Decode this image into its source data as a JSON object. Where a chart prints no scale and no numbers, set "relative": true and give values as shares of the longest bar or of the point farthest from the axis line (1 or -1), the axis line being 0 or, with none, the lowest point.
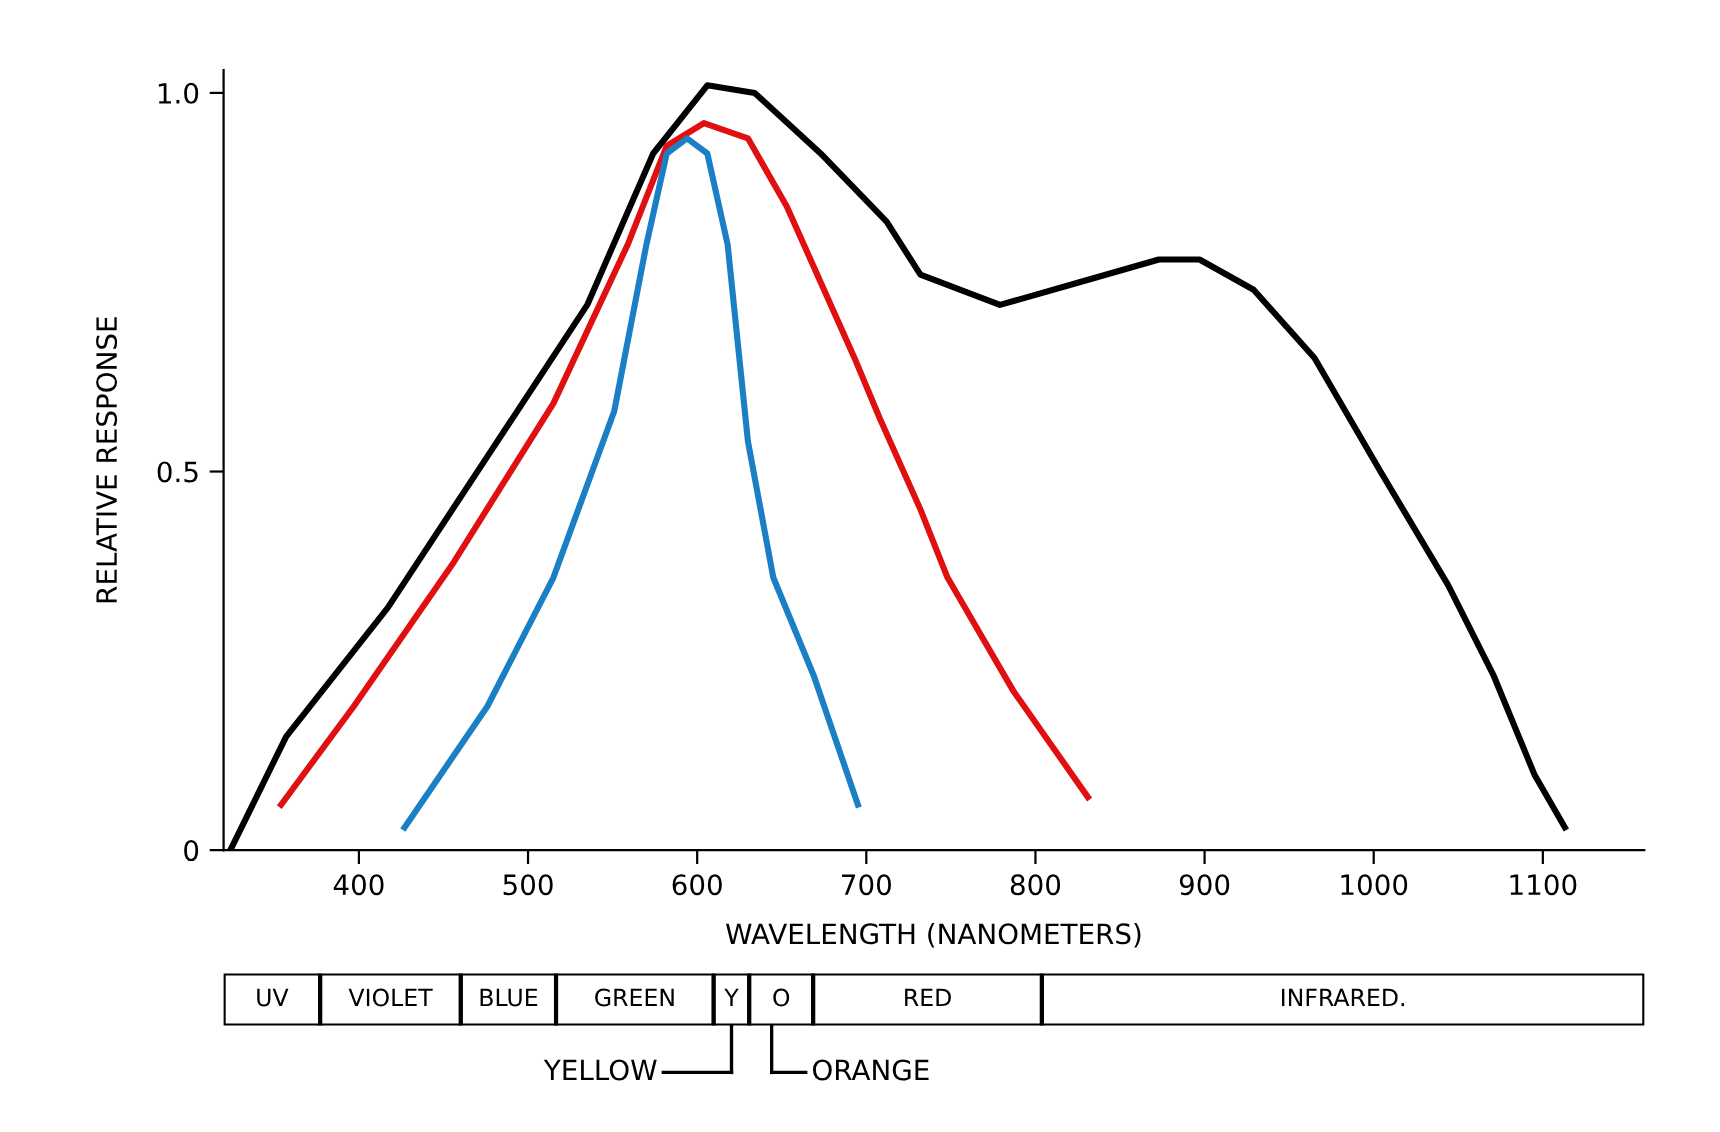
{
  "chart_data": [
    {
      "type": "line",
      "xlabel": "WAVELENGTH (NANOMETERS)",
      "ylabel": "RELATIVE RESPONSE",
      "xlim": [
        320,
        1160
      ],
      "ylim": [
        0,
        1.03
      ],
      "xticks": [
        400,
        500,
        600,
        700,
        800,
        900,
        1000,
        1100
      ],
      "yticks": [
        0,
        0.5,
        {
          "value": 1,
          "label": "1.0"
        }
      ],
      "grid": false,
      "legend": false,
      "marker": "none",
      "line_style": "solid",
      "series": [
        {
          "color": "#000000",
          "x": [
            324,
            357,
            417,
            476,
            535,
            574,
            606,
            634,
            673,
            712,
            732,
            779,
            826,
            873,
            897,
            929,
            965,
            1004,
            1044,
            1071,
            1095,
            1113
          ],
          "values": [
            0,
            0.15,
            0.32,
            0.52,
            0.72,
            0.92,
            1.01,
            1.0,
            0.92,
            0.83,
            0.76,
            0.72,
            0.75,
            0.78,
            0.78,
            0.74,
            0.65,
            0.5,
            0.35,
            0.23,
            0.1,
            0.03
          ]
        },
        {
          "color": "#e01010",
          "x": [
            354,
            397,
            456,
            515,
            559,
            582,
            604,
            630,
            653,
            693,
            708,
            732,
            748,
            787,
            831
          ],
          "values": [
            0.06,
            0.19,
            0.38,
            0.59,
            0.8,
            0.93,
            0.96,
            0.94,
            0.85,
            0.65,
            0.57,
            0.45,
            0.36,
            0.21,
            0.07
          ]
        },
        {
          "color": "#1a7fc4",
          "x": [
            427,
            476,
            515,
            551,
            570,
            582,
            594,
            606,
            618,
            630,
            645,
            669,
            695
          ],
          "values": [
            0.03,
            0.19,
            0.36,
            0.58,
            0.8,
            0.92,
            0.94,
            0.92,
            0.8,
            0.54,
            0.36,
            0.23,
            0.06
          ]
        }
      ]
    },
    {
      "type": "bar",
      "orientation": "horizontal",
      "stacked": true,
      "relative": true,
      "categories": [
        null
      ],
      "series": [
        {
          "name": "UV",
          "color": "#ffffff",
          "values": [
            0.068
          ]
        },
        {
          "name": "VIOLET",
          "color": "#ffffff",
          "values": [
            0.099
          ]
        },
        {
          "name": "BLUE",
          "color": "#ffffff",
          "values": [
            0.067
          ]
        },
        {
          "name": "GREEN",
          "color": "#ffffff",
          "values": [
            0.111
          ]
        },
        {
          "name": "Y",
          "color": "#ffffff",
          "values": [
            0.025
          ]
        },
        {
          "name": "O",
          "color": "#ffffff",
          "values": [
            0.045
          ]
        },
        {
          "name": "RED",
          "color": "#ffffff",
          "values": [
            0.161
          ]
        },
        {
          "name": "INFRARED.",
          "color": "#ffffff",
          "values": [
            0.424
          ]
        }
      ],
      "annotations": [
        "YELLOW",
        "ORANGE"
      ]
    }
  ]
}
